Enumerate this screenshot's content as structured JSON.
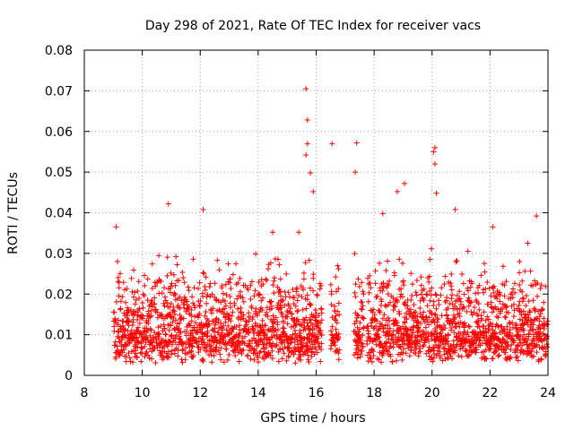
{
  "chart_data": {
    "type": "scatter",
    "title": "Day 298 of 2021, Rate Of TEC Index for receiver vacs",
    "xlabel": "GPS time / hours",
    "ylabel": "ROTI / TECUs",
    "xlim": [
      8,
      24
    ],
    "ylim": [
      0,
      0.08
    ],
    "xticks": [
      8,
      10,
      12,
      14,
      16,
      18,
      20,
      22,
      24
    ],
    "xtick_labels": [
      "8",
      "10",
      "12",
      "14",
      "16",
      "18",
      "20",
      "22",
      "24"
    ],
    "yticks": [
      0,
      0.01,
      0.02,
      0.03,
      0.04,
      0.05,
      0.06,
      0.07,
      0.08
    ],
    "ytick_labels": [
      "0",
      "0.01",
      "0.02",
      "0.03",
      "0.04",
      "0.05",
      "0.06",
      "0.07",
      "0.08"
    ],
    "grid": true,
    "marker": "+",
    "series_color": "#ff0000",
    "data_gaps_hours": [
      [
        16.2,
        16.5
      ],
      [
        16.8,
        17.3
      ],
      [
        17.65,
        17.75
      ]
    ],
    "notable_points": [
      {
        "x": 9.1,
        "y": 0.0365
      },
      {
        "x": 10.9,
        "y": 0.0422
      },
      {
        "x": 12.1,
        "y": 0.0408
      },
      {
        "x": 14.5,
        "y": 0.0352
      },
      {
        "x": 15.4,
        "y": 0.0352
      },
      {
        "x": 15.65,
        "y": 0.0705
      },
      {
        "x": 15.7,
        "y": 0.0628
      },
      {
        "x": 15.7,
        "y": 0.057
      },
      {
        "x": 15.65,
        "y": 0.0542
      },
      {
        "x": 15.8,
        "y": 0.0498
      },
      {
        "x": 15.9,
        "y": 0.0452
      },
      {
        "x": 16.55,
        "y": 0.057
      },
      {
        "x": 17.4,
        "y": 0.0572
      },
      {
        "x": 17.35,
        "y": 0.05
      },
      {
        "x": 18.3,
        "y": 0.0398
      },
      {
        "x": 18.8,
        "y": 0.0452
      },
      {
        "x": 19.05,
        "y": 0.0472
      },
      {
        "x": 20.1,
        "y": 0.056
      },
      {
        "x": 20.05,
        "y": 0.055
      },
      {
        "x": 20.1,
        "y": 0.052
      },
      {
        "x": 20.15,
        "y": 0.0448
      },
      {
        "x": 20.8,
        "y": 0.0408
      },
      {
        "x": 22.1,
        "y": 0.0365
      },
      {
        "x": 23.3,
        "y": 0.0325
      },
      {
        "x": 23.6,
        "y": 0.0392
      }
    ],
    "series": [
      {
        "name": "vacs",
        "x_range": [
          9.0,
          24.0
        ],
        "typical_y_range": [
          0.003,
          0.025
        ],
        "n_points_approx": 3000
      }
    ]
  }
}
